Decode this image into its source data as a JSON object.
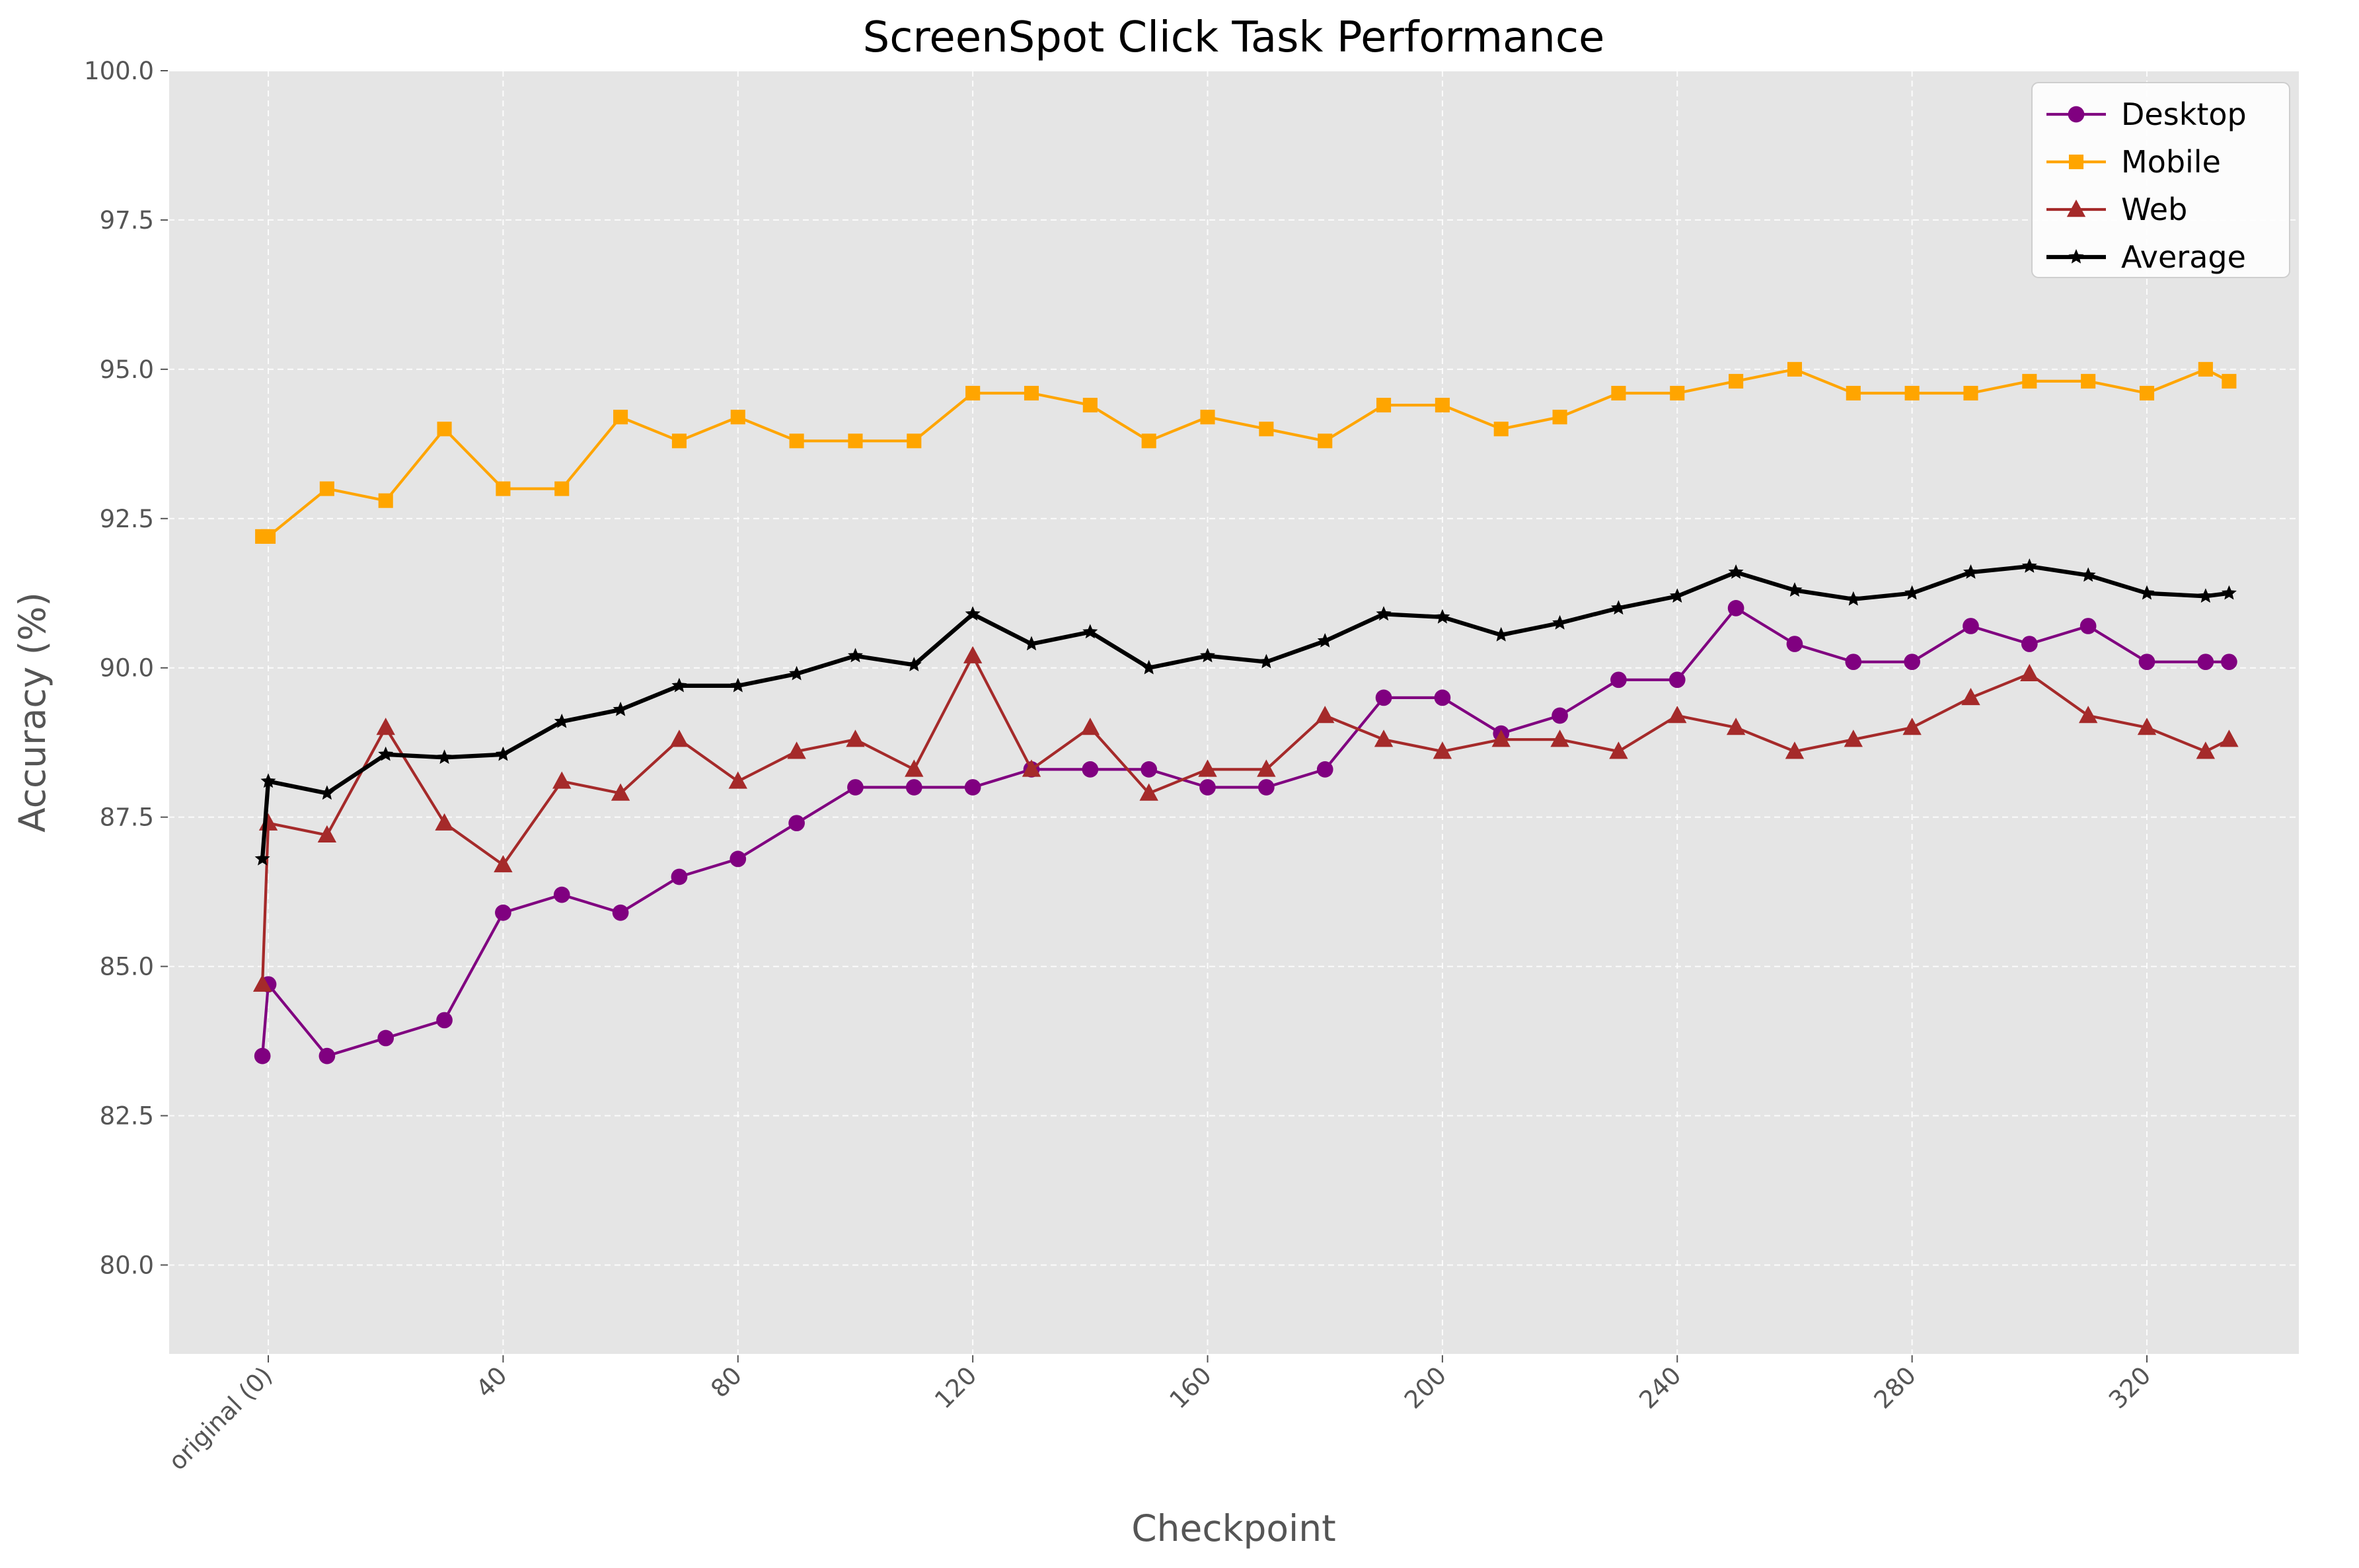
{
  "chart_data": {
    "type": "line",
    "title": "ScreenSpot Click Task Performance",
    "xlabel": "Checkpoint",
    "ylabel": "Accuracy (%)",
    "xlim": [
      -17,
      346
    ],
    "ylim": [
      78.5,
      100.0
    ],
    "grid": true,
    "legend_position": "top-right",
    "x_ticks": [
      {
        "value": 0,
        "label": "original (0)"
      },
      {
        "value": 40,
        "label": "40"
      },
      {
        "value": 80,
        "label": "80"
      },
      {
        "value": 120,
        "label": "120"
      },
      {
        "value": 160,
        "label": "160"
      },
      {
        "value": 200,
        "label": "200"
      },
      {
        "value": 240,
        "label": "240"
      },
      {
        "value": 280,
        "label": "280"
      },
      {
        "value": 320,
        "label": "320"
      }
    ],
    "y_ticks": [
      "80.0",
      "82.5",
      "85.0",
      "87.5",
      "90.0",
      "92.5",
      "95.0",
      "97.5",
      "100.0"
    ],
    "x": [
      -1,
      0,
      10,
      20,
      30,
      40,
      50,
      60,
      70,
      80,
      90,
      100,
      110,
      120,
      130,
      140,
      150,
      160,
      170,
      180,
      190,
      200,
      210,
      220,
      230,
      240,
      250,
      260,
      270,
      280,
      290,
      300,
      310,
      320,
      330,
      334
    ],
    "series": [
      {
        "name": "Desktop",
        "color": "#800080",
        "marker": "circle",
        "line_width": 2,
        "values": [
          83.5,
          84.7,
          83.5,
          83.8,
          84.1,
          85.9,
          86.2,
          85.9,
          86.5,
          86.8,
          87.4,
          88.0,
          88.0,
          88.0,
          88.3,
          88.3,
          88.3,
          88.0,
          88.0,
          88.3,
          89.5,
          89.5,
          88.9,
          89.2,
          89.8,
          89.8,
          91.0,
          90.4,
          90.1,
          90.1,
          90.7,
          90.4,
          90.7,
          90.1,
          90.1,
          90.1
        ]
      },
      {
        "name": "Mobile",
        "color": "#ffa500",
        "marker": "square",
        "line_width": 2,
        "values": [
          92.2,
          92.2,
          93.0,
          92.8,
          94.0,
          93.0,
          93.0,
          94.2,
          93.8,
          94.2,
          93.8,
          93.8,
          93.8,
          94.6,
          94.6,
          94.4,
          93.8,
          94.2,
          94.0,
          93.8,
          94.4,
          94.4,
          94.0,
          94.2,
          94.6,
          94.6,
          94.8,
          95.0,
          94.6,
          94.6,
          94.6,
          94.8,
          94.8,
          94.6,
          95.0,
          94.8
        ]
      },
      {
        "name": "Web",
        "color": "#a52a2a",
        "marker": "triangle",
        "line_width": 2,
        "values": [
          84.7,
          87.4,
          87.2,
          89.0,
          87.4,
          86.7,
          88.1,
          87.9,
          88.8,
          88.1,
          88.6,
          88.8,
          88.3,
          90.2,
          88.3,
          89.0,
          87.9,
          88.3,
          88.3,
          89.2,
          88.8,
          88.6,
          88.8,
          88.8,
          88.6,
          89.2,
          89.0,
          88.6,
          88.8,
          89.0,
          89.5,
          89.9,
          89.2,
          89.0,
          88.6,
          88.8
        ]
      },
      {
        "name": "Average",
        "color": "#000000",
        "marker": "star",
        "line_width": 3,
        "values": [
          86.8,
          88.1,
          87.9,
          88.55,
          88.5,
          88.55,
          89.1,
          89.3,
          89.7,
          89.7,
          89.9,
          90.2,
          90.05,
          90.9,
          90.4,
          90.6,
          90.0,
          90.2,
          90.1,
          90.45,
          90.9,
          90.85,
          90.55,
          90.75,
          91.0,
          91.2,
          91.6,
          91.3,
          91.15,
          91.25,
          91.6,
          91.7,
          91.55,
          91.25,
          91.2,
          91.25
        ]
      }
    ]
  }
}
